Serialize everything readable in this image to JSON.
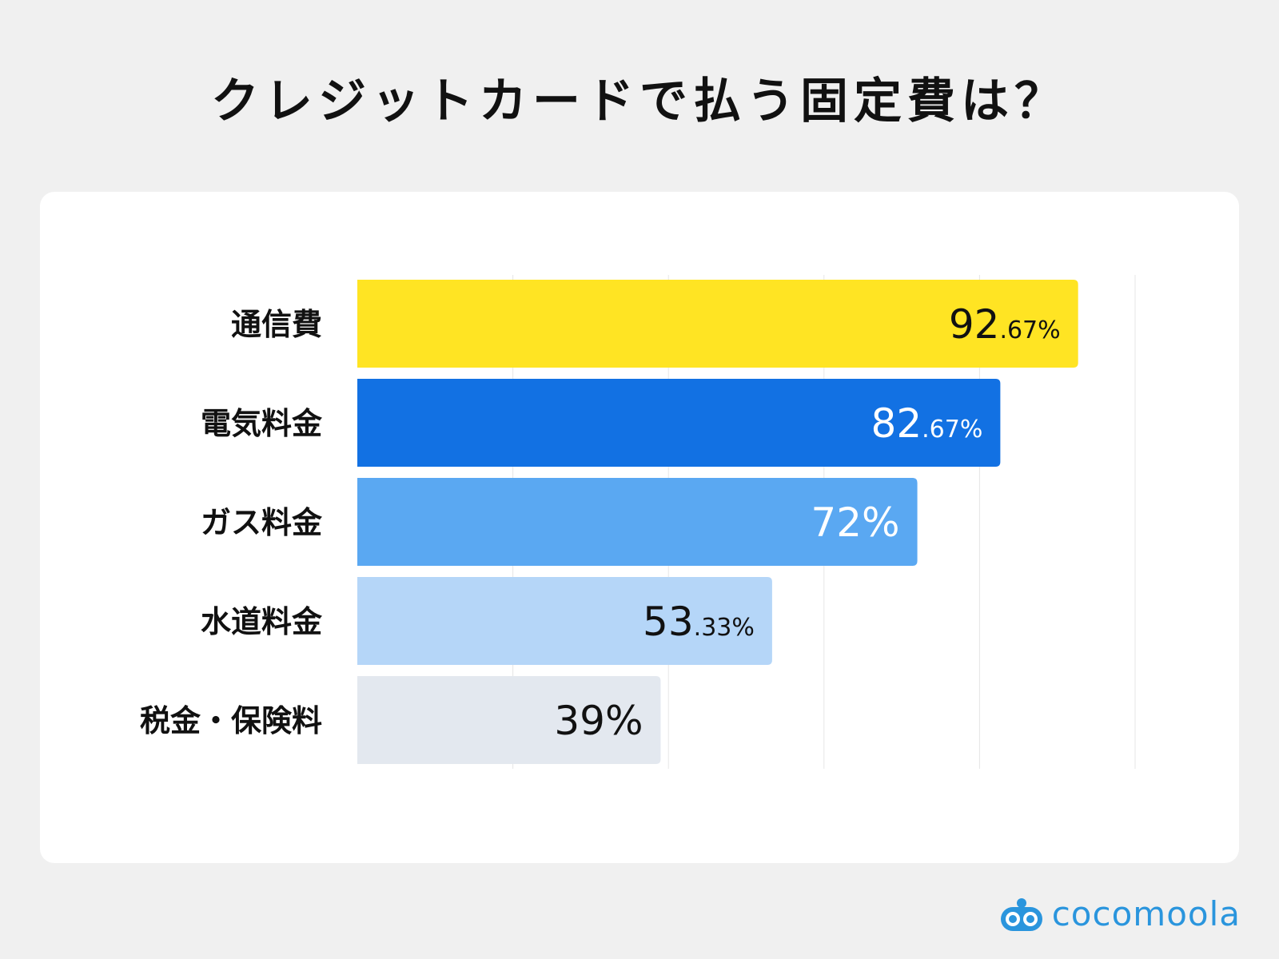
{
  "title": "クレジットカードで払う固定費は？",
  "logo_text": "cocomoola",
  "chart_data": {
    "type": "bar",
    "orientation": "horizontal",
    "title": "クレジットカードで払う固定費は？",
    "categories": [
      "通信費",
      "電気料金",
      "ガス料金",
      "水道料金",
      "税金・保険料"
    ],
    "values": [
      92.67,
      82.67,
      72,
      53.33,
      39
    ],
    "value_labels": [
      {
        "main": "92",
        "decimal": ".67",
        "unit": "%"
      },
      {
        "main": "82",
        "decimal": ".67",
        "unit": "%"
      },
      {
        "main": "72",
        "decimal": "",
        "unit": "%"
      },
      {
        "main": "53",
        "decimal": ".33",
        "unit": "%"
      },
      {
        "main": "39",
        "decimal": "",
        "unit": "%"
      }
    ],
    "colors": [
      "#ffe423",
      "#1271e3",
      "#5aa8f2",
      "#b5d6f8",
      "#e3e8ef"
    ],
    "label_colors": [
      "#111111",
      "#ffffff",
      "#ffffff",
      "#111111",
      "#111111"
    ],
    "xlim": [
      0,
      100
    ],
    "grid": true,
    "xlabel": "",
    "ylabel": ""
  }
}
